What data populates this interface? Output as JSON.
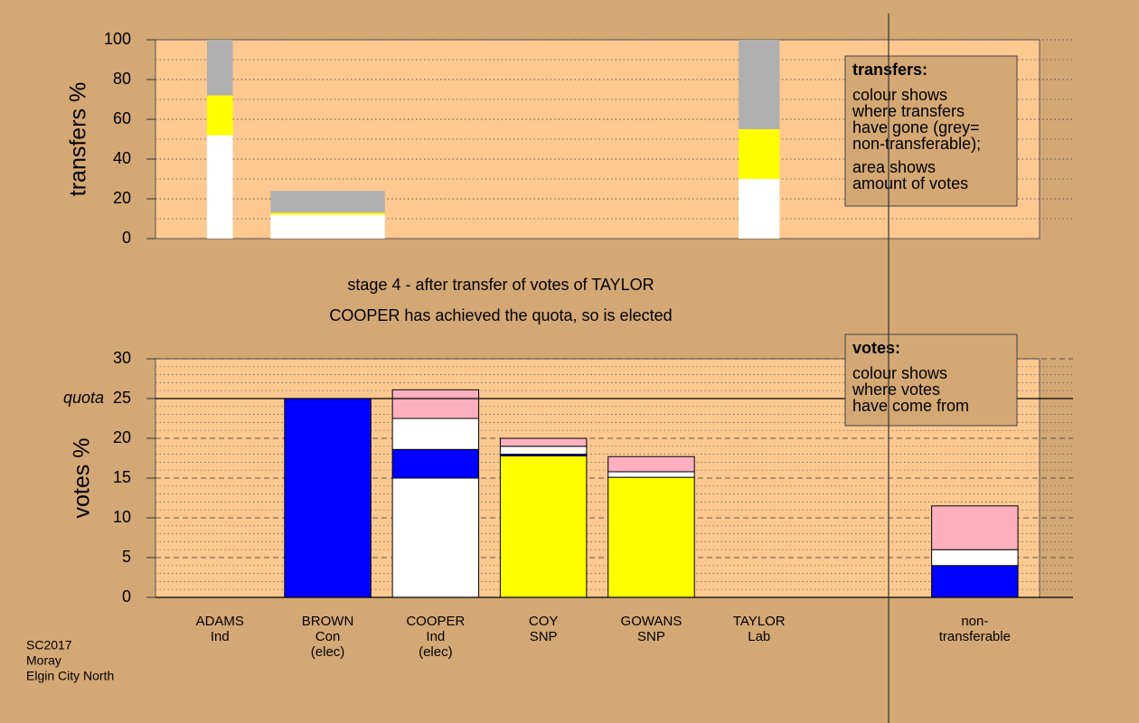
{
  "chart_data": [
    {
      "type": "bar",
      "y_label": "transfers %",
      "ylim": [
        0,
        100
      ],
      "yticks": [
        0,
        20,
        40,
        60,
        80,
        100
      ],
      "minor_yticks": [
        10,
        30,
        50,
        70,
        90
      ],
      "grid": true,
      "grid_style": "dotted",
      "widths": [
        0.24,
        1.06,
        null,
        null,
        null,
        0.38,
        null,
        null
      ],
      "series": [
        {
          "color": "#ffffff",
          "values": [
            52,
            12,
            null,
            null,
            null,
            30,
            null,
            null
          ]
        },
        {
          "color": "#ffff00",
          "values": [
            20,
            1,
            null,
            null,
            null,
            25,
            null,
            null
          ]
        },
        {
          "color": "#b0b0b0",
          "values": [
            28,
            11,
            null,
            null,
            null,
            45,
            null,
            null
          ]
        }
      ],
      "note": {
        "heading": "transfers:",
        "paragraphs": [
          [
            "colour shows",
            "where transfers",
            "have gone (grey=",
            "non-transferable);"
          ],
          [
            "area shows",
            "amount of votes"
          ]
        ]
      }
    },
    {
      "type": "bar",
      "title": [
        "stage 4 - after transfer of votes of TAYLOR",
        "COOPER has achieved the quota, so is elected"
      ],
      "y_label": "votes %",
      "ylim": [
        0,
        30
      ],
      "yticks": [
        0,
        5,
        10,
        15,
        20,
        25,
        30
      ],
      "minor_yticks": [
        1,
        2,
        3,
        4,
        6,
        7,
        8,
        9,
        11,
        12,
        13,
        14,
        16,
        17,
        18,
        19,
        21,
        22,
        23,
        24,
        26,
        27,
        28,
        29
      ],
      "grid": true,
      "grid_style": "dashed",
      "quota": {
        "value": 25,
        "label": "quota"
      },
      "categories": [
        [
          "ADAMS",
          "Ind"
        ],
        [
          "BROWN",
          "Con",
          "(elec)"
        ],
        [
          "COOPER",
          "Ind",
          "(elec)"
        ],
        [
          "COY",
          "SNP"
        ],
        [
          "GOWANS",
          "SNP"
        ],
        [
          "TAYLOR",
          "Lab"
        ],
        null,
        [
          "non-",
          "transferable"
        ]
      ],
      "stacks": [
        [
          {
            "color": "#ffffff",
            "value": 0
          }
        ],
        [
          {
            "color": "#0000ff",
            "value": 25
          }
        ],
        [
          {
            "color": "#ffffff",
            "value": 15
          },
          {
            "color": "#0000ff",
            "value": 3.6
          },
          {
            "color": "#ffffff",
            "value": 3.9
          },
          {
            "color": "#ffb0c0",
            "value": 3.6
          }
        ],
        [
          {
            "color": "#ffff00",
            "value": 17.8
          },
          {
            "color": "#0000ff",
            "value": 0.2
          },
          {
            "color": "#ffffff",
            "value": 1
          },
          {
            "color": "#ffb0c0",
            "value": 1
          }
        ],
        [
          {
            "color": "#ffff00",
            "value": 15.1
          },
          {
            "color": "#ffffff",
            "value": 0.7
          },
          {
            "color": "#ffb0c0",
            "value": 1.9
          }
        ],
        [
          {
            "color": "#ffffff",
            "value": 0
          }
        ],
        [],
        [
          {
            "color": "#0000ff",
            "value": 4
          },
          {
            "color": "#ffffff",
            "value": 2
          },
          {
            "color": "#ffb0c0",
            "value": 5.5
          }
        ]
      ],
      "note": {
        "heading": "votes:",
        "paragraphs": [
          [
            "colour shows",
            "where votes",
            "have come from"
          ]
        ]
      }
    }
  ],
  "footer": [
    "SC2017",
    "Moray",
    "Elgin City North"
  ]
}
